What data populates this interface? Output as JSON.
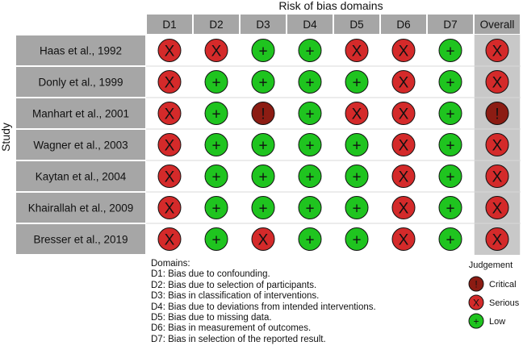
{
  "chart_data": {
    "type": "table",
    "title": "Risk of bias domains",
    "ylabel": "Study",
    "columns": [
      "D1",
      "D2",
      "D3",
      "D4",
      "D5",
      "D6",
      "D7",
      "Overall"
    ],
    "studies": [
      {
        "label": "Haas et al., 1992",
        "judgements": [
          "Serious",
          "Serious",
          "Low",
          "Low",
          "Serious",
          "Serious",
          "Low",
          "Serious"
        ]
      },
      {
        "label": "Donly et al., 1999",
        "judgements": [
          "Serious",
          "Low",
          "Low",
          "Low",
          "Low",
          "Serious",
          "Low",
          "Serious"
        ]
      },
      {
        "label": "Manhart et al., 2001",
        "judgements": [
          "Serious",
          "Low",
          "Critical",
          "Low",
          "Serious",
          "Serious",
          "Low",
          "Critical"
        ]
      },
      {
        "label": "Wagner et al., 2003",
        "judgements": [
          "Serious",
          "Low",
          "Low",
          "Low",
          "Low",
          "Serious",
          "Low",
          "Serious"
        ]
      },
      {
        "label": "Kaytan et al., 2004",
        "judgements": [
          "Serious",
          "Low",
          "Low",
          "Low",
          "Low",
          "Serious",
          "Low",
          "Serious"
        ]
      },
      {
        "label": "Khairallah et al., 2009",
        "judgements": [
          "Serious",
          "Low",
          "Low",
          "Low",
          "Low",
          "Serious",
          "Low",
          "Serious"
        ]
      },
      {
        "label": "Bresser et al., 2019",
        "judgements": [
          "Serious",
          "Low",
          "Serious",
          "Low",
          "Low",
          "Serious",
          "Low",
          "Serious"
        ]
      }
    ],
    "judgement_levels": [
      {
        "name": "Critical",
        "symbol": "!",
        "color": "#8c1c13"
      },
      {
        "name": "Serious",
        "symbol": "X",
        "color": "#d42a2a"
      },
      {
        "name": "Low",
        "symbol": "+",
        "color": "#1fc41f"
      }
    ],
    "legend_title": "Judgement",
    "legend_placement": "bottom-right",
    "domains_title": "Domains:",
    "domains": [
      "D1: Bias due to confounding.",
      "D2: Bias due to selection of participants.",
      "D3: Bias in classification of interventions.",
      "D4: Bias due to deviations from intended interventions.",
      "D5: Bias due to missing data.",
      "D6: Bias in measurement of outcomes.",
      "D7: Bias in selection of the reported result."
    ]
  }
}
